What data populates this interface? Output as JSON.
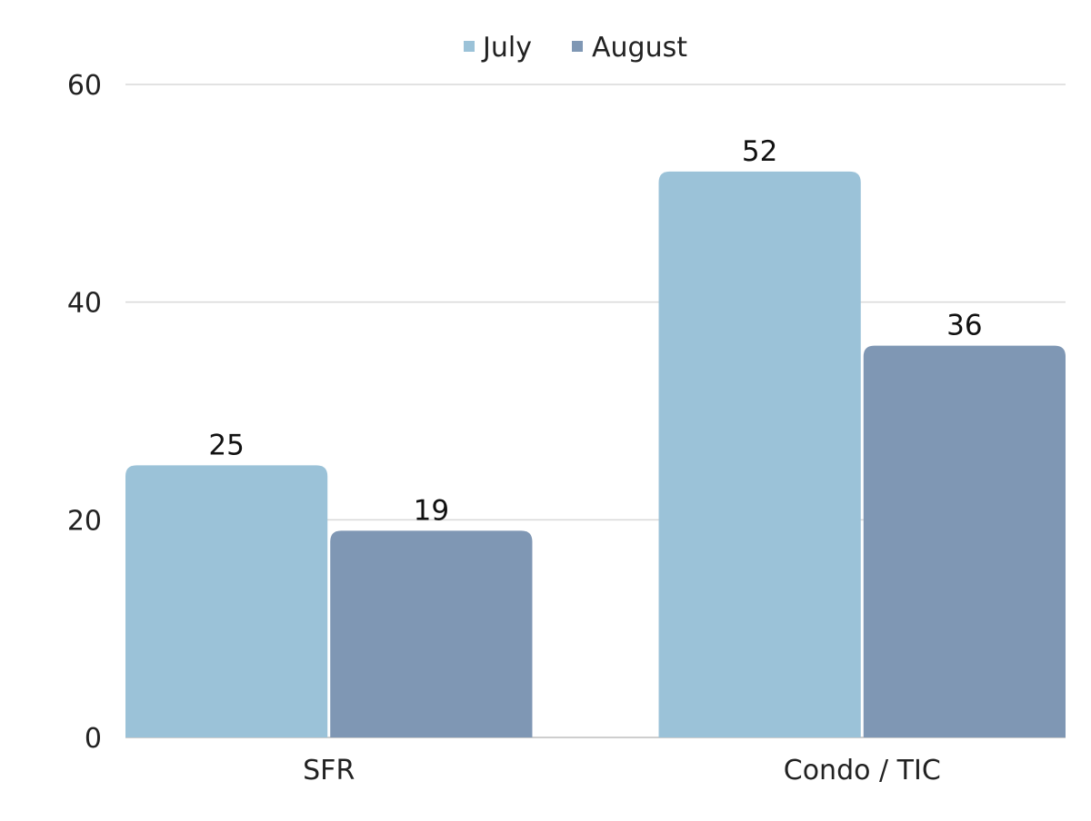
{
  "chart_data": {
    "type": "bar",
    "categories": [
      "SFR",
      "Condo / TIC"
    ],
    "series": [
      {
        "name": "July",
        "values": [
          25,
          52
        ],
        "color": "#9bc2d8"
      },
      {
        "name": "August",
        "values": [
          19,
          36
        ],
        "color": "#7f97b4"
      }
    ],
    "ylim": [
      0,
      60
    ],
    "yticks": [
      "0",
      "20",
      "40",
      "60"
    ],
    "title": "",
    "xlabel": "",
    "ylabel": "",
    "grid": true,
    "gridColor": "#d9d9d9",
    "legend_position": "top"
  }
}
